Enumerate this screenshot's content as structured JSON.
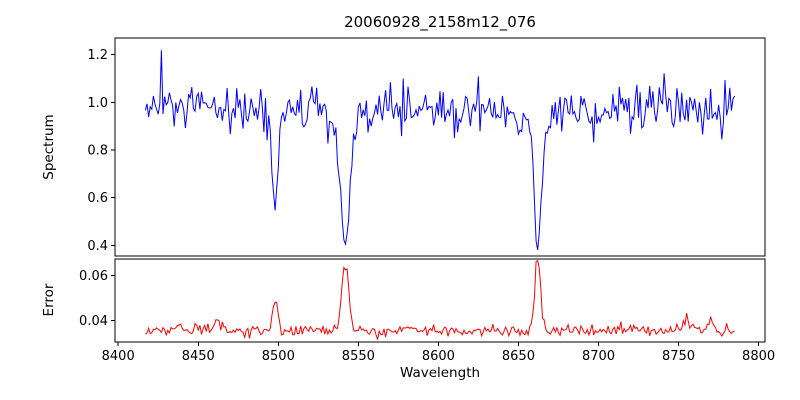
{
  "figure": {
    "title": "20060928_2158m12_076",
    "xlabel": "Wavelength",
    "ylabel_spectrum": "Spectrum",
    "ylabel_error": "Error",
    "background_color": "#ffffff",
    "frame_color": "#000000",
    "text_color": "#000000"
  },
  "x_axis": {
    "label": "Wavelength",
    "ticks": [
      "8400",
      "8450",
      "8500",
      "8550",
      "8600",
      "8650",
      "8700",
      "8750",
      "8800"
    ]
  },
  "chart_data": [
    {
      "type": "line",
      "name": "spectrum",
      "title": "20060928_2158m12_076",
      "xlabel": "Wavelength",
      "ylabel": "Spectrum",
      "line_color": "#0000ff",
      "x_start": 8417,
      "x_end": 8785,
      "x_step": 1,
      "xlim": [
        8398,
        8804
      ],
      "ylim": [
        0.355,
        1.27
      ],
      "yticks": [
        "0.4",
        "0.6",
        "0.8",
        "1.0",
        "1.2"
      ],
      "continuum": 0.97,
      "noise_sigma": 0.048,
      "noise_seed": 12345,
      "absorption_lines": [
        {
          "center": 8498.0,
          "core_depth": 0.33,
          "core_sigma": 1.8,
          "wing_depth": 0.05,
          "wing_sigma": 5.0
        },
        {
          "center": 8542.0,
          "core_depth": 0.47,
          "core_sigma": 2.8,
          "wing_depth": 0.1,
          "wing_sigma": 9.0
        },
        {
          "center": 8662.0,
          "core_depth": 0.48,
          "core_sigma": 2.2,
          "wing_depth": 0.09,
          "wing_sigma": 7.0
        }
      ],
      "outlier_spikes": [
        {
          "x": 8427,
          "dy": 0.24
        },
        {
          "x": 8470,
          "dy": -0.1
        },
        {
          "x": 8578,
          "dy": 0.15
        },
        {
          "x": 8610,
          "dy": -0.12
        },
        {
          "x": 8697,
          "dy": -0.13
        },
        {
          "x": 8741,
          "dy": 0.12
        }
      ]
    },
    {
      "type": "line",
      "name": "error",
      "ylabel": "Error",
      "line_color": "#ff0000",
      "x_start": 8417,
      "x_end": 8785,
      "x_step": 1,
      "xlim": [
        8398,
        8804
      ],
      "ylim": [
        0.0305,
        0.0672
      ],
      "yticks": [
        "0.04",
        "0.06"
      ],
      "continuum": 0.0355,
      "noise_sigma": 0.0012,
      "noise_seed": 67890,
      "peaks": [
        {
          "center": 8462,
          "height": 0.004,
          "sigma": 2.0
        },
        {
          "center": 8498,
          "height": 0.012,
          "sigma": 1.8
        },
        {
          "center": 8542,
          "height": 0.029,
          "sigma": 2.2
        },
        {
          "center": 8662,
          "height": 0.03,
          "sigma": 1.8
        },
        {
          "center": 8755,
          "height": 0.004,
          "sigma": 2.5
        },
        {
          "center": 8770,
          "height": 0.005,
          "sigma": 1.5
        }
      ],
      "outlier_spikes": []
    }
  ]
}
